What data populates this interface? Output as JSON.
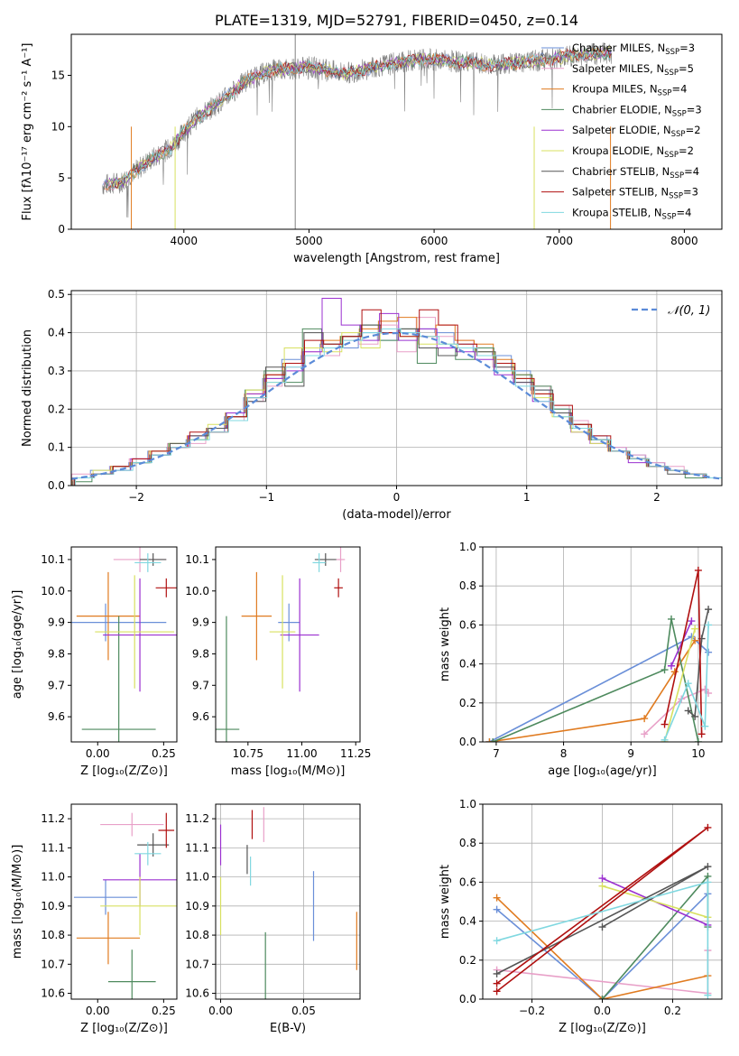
{
  "chart_data": [
    {
      "id": "spectrum",
      "type": "line",
      "title": "PLATE=1319, MJD=52791, FIBERID=0450, z=0.14",
      "xlabel": "wavelength [Angstrom, rest frame]",
      "ylabel": "Flux [fλ10⁻¹⁷ erg cm⁻² s⁻¹ A⁻¹]",
      "xlim": [
        3100,
        8300
      ],
      "ylim": [
        0,
        19
      ],
      "xticks": [
        "4000",
        "5000",
        "6000",
        "7000",
        "8000"
      ],
      "yticks": [
        "0",
        "5",
        "10",
        "15"
      ],
      "data_x": [
        3350,
        3500,
        3700,
        3900,
        4000,
        4100,
        4300,
        4500,
        4700,
        5000,
        5300,
        5600,
        5900,
        6200,
        6500,
        6800,
        7100,
        7400
      ],
      "data_y": [
        4.3,
        4.6,
        6.5,
        8.0,
        9.5,
        10.8,
        12.5,
        14.5,
        15.5,
        15.8,
        15.2,
        16.0,
        16.6,
        16.3,
        16.0,
        16.4,
        16.9,
        17.2
      ],
      "legend": [
        {
          "label": "Chabrier MILES, N",
          "sub": "SSP",
          "eq": "=3",
          "color": "#6a8fd8"
        },
        {
          "label": "Salpeter MILES, N",
          "sub": "SSP",
          "eq": "=5",
          "color": "#e8a0c8"
        },
        {
          "label": "Kroupa MILES, N",
          "sub": "SSP",
          "eq": "=4",
          "color": "#e07b20"
        },
        {
          "label": "Chabrier ELODIE, N",
          "sub": "SSP",
          "eq": "=3",
          "color": "#4e8a5e"
        },
        {
          "label": "Salpeter ELODIE, N",
          "sub": "SSP",
          "eq": "=2",
          "color": "#9b30d0"
        },
        {
          "label": "Kroupa ELODIE, N",
          "sub": "SSP",
          "eq": "=2",
          "color": "#d8e060"
        },
        {
          "label": "Chabrier STELIB, N",
          "sub": "SSP",
          "eq": "=4",
          "color": "#555555"
        },
        {
          "label": "Salpeter STELIB, N",
          "sub": "SSP",
          "eq": "=3",
          "color": "#b01010"
        },
        {
          "label": "Kroupa STELIB, N",
          "sub": "SSP",
          "eq": "=4",
          "color": "#80d8e0"
        }
      ]
    },
    {
      "id": "residuals",
      "type": "line",
      "xlabel": "(data-model)/error",
      "ylabel": "Normed distribution",
      "xlim": [
        -2.5,
        2.5
      ],
      "ylim": [
        0,
        0.51
      ],
      "xticks": [
        "−2",
        "−1",
        "0",
        "1",
        "2"
      ],
      "yticks": [
        "0.0",
        "0.1",
        "0.2",
        "0.3",
        "0.4",
        "0.5"
      ],
      "grid": true,
      "legend_label": "𝒩(0, 1)",
      "normal_curve": {
        "mean": 0,
        "sigma": 1
      },
      "hist_color_series": [
        "#6a8fd8",
        "#e8a0c8",
        "#e07b20",
        "#4e8a5e",
        "#9b30d0",
        "#d8e060",
        "#555555",
        "#b01010",
        "#80d8e0"
      ],
      "histograms": [
        [
          0.02,
          0.04,
          0.05,
          0.06,
          0.09,
          0.1,
          0.12,
          0.14,
          0.18,
          0.23,
          0.28,
          0.33,
          0.34,
          0.37,
          0.36,
          0.4,
          0.38,
          0.4,
          0.41,
          0.4,
          0.37,
          0.35,
          0.34,
          0.3,
          0.25,
          0.2,
          0.16,
          0.13,
          0.1,
          0.08,
          0.06,
          0.04,
          0.03,
          0.02
        ],
        [
          0.03,
          0.03,
          0.05,
          0.07,
          0.08,
          0.11,
          0.11,
          0.14,
          0.17,
          0.22,
          0.26,
          0.31,
          0.35,
          0.34,
          0.38,
          0.37,
          0.42,
          0.35,
          0.44,
          0.39,
          0.38,
          0.36,
          0.31,
          0.28,
          0.26,
          0.21,
          0.17,
          0.12,
          0.1,
          0.08,
          0.06,
          0.05,
          0.03,
          0.02
        ],
        [
          0.02,
          0.03,
          0.05,
          0.06,
          0.09,
          0.1,
          0.13,
          0.15,
          0.19,
          0.24,
          0.29,
          0.32,
          0.36,
          0.38,
          0.39,
          0.41,
          0.43,
          0.44,
          0.39,
          0.42,
          0.38,
          0.37,
          0.33,
          0.29,
          0.24,
          0.19,
          0.16,
          0.12,
          0.09,
          0.07,
          0.05,
          0.04,
          0.03,
          0.02
        ],
        [
          0.01,
          0.03,
          0.04,
          0.06,
          0.08,
          0.11,
          0.12,
          0.15,
          0.19,
          0.25,
          0.3,
          0.27,
          0.41,
          0.37,
          0.39,
          0.42,
          0.38,
          0.41,
          0.32,
          0.36,
          0.33,
          0.36,
          0.3,
          0.29,
          0.26,
          0.2,
          0.15,
          0.12,
          0.09,
          0.07,
          0.05,
          0.04,
          0.02,
          0.02
        ],
        [
          0.02,
          0.03,
          0.04,
          0.07,
          0.08,
          0.1,
          0.13,
          0.15,
          0.19,
          0.24,
          0.28,
          0.3,
          0.35,
          0.49,
          0.42,
          0.38,
          0.45,
          0.38,
          0.41,
          0.36,
          0.35,
          0.33,
          0.29,
          0.27,
          0.22,
          0.19,
          0.14,
          0.11,
          0.09,
          0.06,
          0.05,
          0.04,
          0.03,
          0.02
        ],
        [
          0.02,
          0.04,
          0.05,
          0.06,
          0.09,
          0.11,
          0.12,
          0.16,
          0.18,
          0.25,
          0.27,
          0.36,
          0.36,
          0.35,
          0.4,
          0.36,
          0.4,
          0.39,
          0.37,
          0.37,
          0.36,
          0.35,
          0.32,
          0.28,
          0.23,
          0.18,
          0.14,
          0.11,
          0.09,
          0.07,
          0.05,
          0.04,
          0.03,
          0.02
        ],
        [
          0.02,
          0.03,
          0.05,
          0.06,
          0.08,
          0.11,
          0.13,
          0.15,
          0.18,
          0.22,
          0.31,
          0.26,
          0.4,
          0.36,
          0.39,
          0.42,
          0.4,
          0.41,
          0.36,
          0.34,
          0.36,
          0.35,
          0.31,
          0.27,
          0.25,
          0.19,
          0.16,
          0.12,
          0.09,
          0.07,
          0.05,
          0.03,
          0.03,
          0.02
        ],
        [
          0.02,
          0.03,
          0.05,
          0.07,
          0.09,
          0.1,
          0.14,
          0.14,
          0.18,
          0.23,
          0.29,
          0.32,
          0.38,
          0.37,
          0.39,
          0.46,
          0.4,
          0.39,
          0.46,
          0.42,
          0.37,
          0.34,
          0.32,
          0.28,
          0.24,
          0.21,
          0.16,
          0.13,
          0.09,
          0.07,
          0.05,
          0.04,
          0.03,
          0.02
        ],
        [
          0.02,
          0.03,
          0.04,
          0.06,
          0.08,
          0.1,
          0.12,
          0.14,
          0.17,
          0.23,
          0.27,
          0.31,
          0.34,
          0.36,
          0.38,
          0.4,
          0.41,
          0.4,
          0.39,
          0.37,
          0.36,
          0.34,
          0.3,
          0.26,
          0.22,
          0.18,
          0.15,
          0.12,
          0.09,
          0.07,
          0.05,
          0.04,
          0.03,
          0.02
        ]
      ]
    },
    {
      "id": "age-vs-z",
      "type": "scatter",
      "xlabel": "Z [log₁₀(Z/Z⊙)]",
      "ylabel": "age  [log₁₀(age/yr)]",
      "xlim": [
        -0.1,
        0.3
      ],
      "ylim": [
        9.52,
        10.14
      ],
      "xticks": [
        "0.00",
        "0.25"
      ],
      "yticks": [
        "9.6",
        "9.7",
        "9.8",
        "9.9",
        "10.0",
        "10.1"
      ],
      "points": [
        {
          "x": 0.03,
          "y": 9.9,
          "xerr": 0.23,
          "yerr": 0.06,
          "color": "#6a8fd8"
        },
        {
          "x": 0.16,
          "y": 10.1,
          "xerr": 0.1,
          "yerr": 0.04,
          "color": "#e8a0c8"
        },
        {
          "x": 0.04,
          "y": 9.92,
          "xerr": 0.12,
          "yerr": 0.14,
          "color": "#e07b20"
        },
        {
          "x": 0.08,
          "y": 9.56,
          "xerr": 0.14,
          "yerr": 0.36,
          "color": "#4e8a5e"
        },
        {
          "x": 0.16,
          "y": 9.86,
          "xerr": 0.14,
          "yerr": 0.18,
          "color": "#9b30d0"
        },
        {
          "x": 0.14,
          "y": 9.87,
          "xerr": 0.15,
          "yerr": 0.18,
          "color": "#d8e060"
        },
        {
          "x": 0.21,
          "y": 10.1,
          "xerr": 0.05,
          "yerr": 0.02,
          "color": "#555555"
        },
        {
          "x": 0.26,
          "y": 10.01,
          "xerr": 0.04,
          "yerr": 0.03,
          "color": "#b01010"
        },
        {
          "x": 0.19,
          "y": 10.09,
          "xerr": 0.05,
          "yerr": 0.03,
          "color": "#80d8e0"
        }
      ]
    },
    {
      "id": "age-vs-mass",
      "type": "scatter",
      "xlabel": "mass [log₁₀(M/M⊙)]",
      "ylabel": "",
      "xlim": [
        10.6,
        11.27
      ],
      "ylim": [
        9.52,
        10.14
      ],
      "xticks": [
        "10.75",
        "11.00",
        "11.25"
      ],
      "yticks": [
        "9.6",
        "9.7",
        "9.8",
        "9.9",
        "10.0",
        "10.1"
      ],
      "points": [
        {
          "x": 10.94,
          "y": 9.9,
          "xerr": 0.05,
          "yerr": 0.06,
          "color": "#6a8fd8"
        },
        {
          "x": 11.18,
          "y": 10.1,
          "xerr": 0.02,
          "yerr": 0.04,
          "color": "#e8a0c8"
        },
        {
          "x": 10.79,
          "y": 9.92,
          "xerr": 0.07,
          "yerr": 0.14,
          "color": "#e07b20"
        },
        {
          "x": 10.65,
          "y": 9.56,
          "xerr": 0.06,
          "yerr": 0.36,
          "color": "#4e8a5e"
        },
        {
          "x": 10.99,
          "y": 9.86,
          "xerr": 0.09,
          "yerr": 0.18,
          "color": "#9b30d0"
        },
        {
          "x": 10.91,
          "y": 9.87,
          "xerr": 0.06,
          "yerr": 0.18,
          "color": "#d8e060"
        },
        {
          "x": 11.11,
          "y": 10.1,
          "xerr": 0.05,
          "yerr": 0.02,
          "color": "#555555"
        },
        {
          "x": 11.17,
          "y": 10.01,
          "xerr": 0.02,
          "yerr": 0.03,
          "color": "#b01010"
        },
        {
          "x": 11.08,
          "y": 10.09,
          "xerr": 0.03,
          "yerr": 0.03,
          "color": "#80d8e0"
        }
      ]
    },
    {
      "id": "weight-vs-age",
      "type": "line",
      "xlabel": "age  [log₁₀(age/yr)]",
      "ylabel": "mass weight",
      "xlim": [
        6.8,
        10.35
      ],
      "ylim": [
        0,
        1.0
      ],
      "xticks": [
        "7",
        "8",
        "9",
        "10"
      ],
      "yticks": [
        "0.0",
        "0.2",
        "0.4",
        "0.6",
        "0.8",
        "1.0"
      ],
      "grid": true,
      "series": [
        {
          "color": "#6a8fd8",
          "x": [
            6.9,
            9.9,
            10.15
          ],
          "y": [
            0.0,
            0.54,
            0.46
          ]
        },
        {
          "color": "#e8a0c8",
          "x": [
            9.2,
            9.75,
            10.1,
            10.15
          ],
          "y": [
            0.04,
            0.22,
            0.27,
            0.25
          ]
        },
        {
          "color": "#e07b20",
          "x": [
            6.9,
            9.2,
            9.65,
            9.95
          ],
          "y": [
            0.0,
            0.12,
            0.36,
            0.52
          ]
        },
        {
          "color": "#4e8a5e",
          "x": [
            6.95,
            9.5,
            9.6,
            10.0
          ],
          "y": [
            0.0,
            0.37,
            0.63,
            0.0
          ]
        },
        {
          "color": "#9b30d0",
          "x": [
            9.6,
            9.9
          ],
          "y": [
            0.39,
            0.62
          ]
        },
        {
          "color": "#d8e060",
          "x": [
            9.5,
            9.95
          ],
          "y": [
            0.0,
            0.58
          ]
        },
        {
          "color": "#555555",
          "x": [
            9.85,
            9.95,
            10.05,
            10.15
          ],
          "y": [
            0.16,
            0.13,
            0.53,
            0.68
          ]
        },
        {
          "color": "#b01010",
          "x": [
            9.5,
            10.0,
            10.05
          ],
          "y": [
            0.09,
            0.88,
            0.04
          ]
        },
        {
          "color": "#80d8e0",
          "x": [
            9.5,
            9.85,
            10.1,
            10.15
          ],
          "y": [
            0.01,
            0.3,
            0.08,
            0.6
          ]
        }
      ]
    },
    {
      "id": "mass-vs-z",
      "type": "scatter",
      "xlabel": "Z [log₁₀(Z/Z⊙)]",
      "ylabel": "mass [log₁₀(M/M⊙)]",
      "xlim": [
        -0.1,
        0.3
      ],
      "ylim": [
        10.58,
        11.25
      ],
      "xticks": [
        "0.00",
        "0.25"
      ],
      "yticks": [
        "10.6",
        "10.7",
        "10.8",
        "10.9",
        "11.0",
        "11.1",
        "11.2"
      ],
      "points": [
        {
          "x": 0.03,
          "y": 10.93,
          "xerr": 0.12,
          "yerr": 0.06,
          "color": "#6a8fd8"
        },
        {
          "x": 0.13,
          "y": 11.18,
          "xerr": 0.12,
          "yerr": 0.04,
          "color": "#e8a0c8"
        },
        {
          "x": 0.04,
          "y": 10.79,
          "xerr": 0.12,
          "yerr": 0.09,
          "color": "#e07b20"
        },
        {
          "x": 0.13,
          "y": 10.64,
          "xerr": 0.09,
          "yerr": 0.11,
          "color": "#4e8a5e"
        },
        {
          "x": 0.16,
          "y": 10.99,
          "xerr": 0.14,
          "yerr": 0.09,
          "color": "#9b30d0"
        },
        {
          "x": 0.16,
          "y": 10.9,
          "xerr": 0.15,
          "yerr": 0.1,
          "color": "#d8e060"
        },
        {
          "x": 0.21,
          "y": 11.11,
          "xerr": 0.06,
          "yerr": 0.04,
          "color": "#555555"
        },
        {
          "x": 0.26,
          "y": 11.16,
          "xerr": 0.03,
          "yerr": 0.06,
          "color": "#b01010"
        },
        {
          "x": 0.19,
          "y": 11.08,
          "xerr": 0.05,
          "yerr": 0.04,
          "color": "#80d8e0"
        }
      ]
    },
    {
      "id": "mass-vs-ebv",
      "type": "scatter",
      "xlabel": "E(B-V)",
      "ylabel": "",
      "xlim": [
        -0.003,
        0.084
      ],
      "ylim": [
        10.58,
        11.25
      ],
      "xticks": [
        "0.00",
        "0.05"
      ],
      "yticks": [
        "10.6",
        "10.7",
        "10.8",
        "10.9",
        "11.0",
        "11.1",
        "11.2"
      ],
      "grid": true,
      "points": [
        {
          "x": 0.056,
          "y": 10.9,
          "yerr": 0.12,
          "color": "#6a8fd8"
        },
        {
          "x": 0.026,
          "y": 11.18,
          "yerr": 0.06,
          "color": "#e8a0c8"
        },
        {
          "x": 0.082,
          "y": 10.78,
          "yerr": 0.1,
          "color": "#e07b20"
        },
        {
          "x": 0.027,
          "y": 10.66,
          "yerr": 0.15,
          "color": "#4e8a5e"
        },
        {
          "x": 0.0,
          "y": 11.11,
          "yerr": 0.07,
          "color": "#9b30d0"
        },
        {
          "x": 0.0,
          "y": 10.9,
          "yerr": 0.1,
          "color": "#d8e060"
        },
        {
          "x": 0.016,
          "y": 11.06,
          "yerr": 0.05,
          "color": "#555555"
        },
        {
          "x": 0.019,
          "y": 11.18,
          "yerr": 0.05,
          "color": "#b01010"
        },
        {
          "x": 0.018,
          "y": 11.02,
          "yerr": 0.05,
          "color": "#80d8e0"
        }
      ]
    },
    {
      "id": "weight-vs-z",
      "type": "line",
      "xlabel": "Z [log₁₀(Z/Z⊙)]",
      "ylabel": "mass weight",
      "xlim": [
        -0.34,
        0.34
      ],
      "ylim": [
        0,
        1.0
      ],
      "xticks": [
        "−0.2",
        "0.0",
        "0.2"
      ],
      "yticks": [
        "0.0",
        "0.2",
        "0.4",
        "0.6",
        "0.8",
        "1.0"
      ],
      "grid": true,
      "series": [
        {
          "color": "#6a8fd8",
          "x": [
            -0.3,
            0.0,
            0.3
          ],
          "y": [
            0.46,
            0.0,
            0.54
          ]
        },
        {
          "color": "#e8a0c8",
          "x": [
            -0.3,
            0.3,
            0.3
          ],
          "y": [
            0.15,
            0.03,
            0.25
          ]
        },
        {
          "color": "#e07b20",
          "x": [
            -0.3,
            0.0,
            0.3
          ],
          "y": [
            0.52,
            0.0,
            0.12
          ]
        },
        {
          "color": "#4e8a5e",
          "x": [
            0.0,
            0.3,
            0.3
          ],
          "y": [
            0.0,
            0.63,
            0.37
          ]
        },
        {
          "color": "#9b30d0",
          "x": [
            0.0,
            0.3
          ],
          "y": [
            0.62,
            0.38
          ]
        },
        {
          "color": "#d8e060",
          "x": [
            0.0,
            0.3
          ],
          "y": [
            0.58,
            0.42
          ]
        },
        {
          "color": "#555555",
          "x": [
            -0.3,
            0.3,
            0.0
          ],
          "y": [
            0.13,
            0.68,
            0.37
          ]
        },
        {
          "color": "#b01010",
          "x": [
            -0.3,
            0.3,
            -0.3
          ],
          "y": [
            0.04,
            0.88,
            0.08
          ]
        },
        {
          "color": "#80d8e0",
          "x": [
            -0.3,
            0.3,
            0.3
          ],
          "y": [
            0.3,
            0.6,
            0.02
          ]
        }
      ]
    }
  ]
}
